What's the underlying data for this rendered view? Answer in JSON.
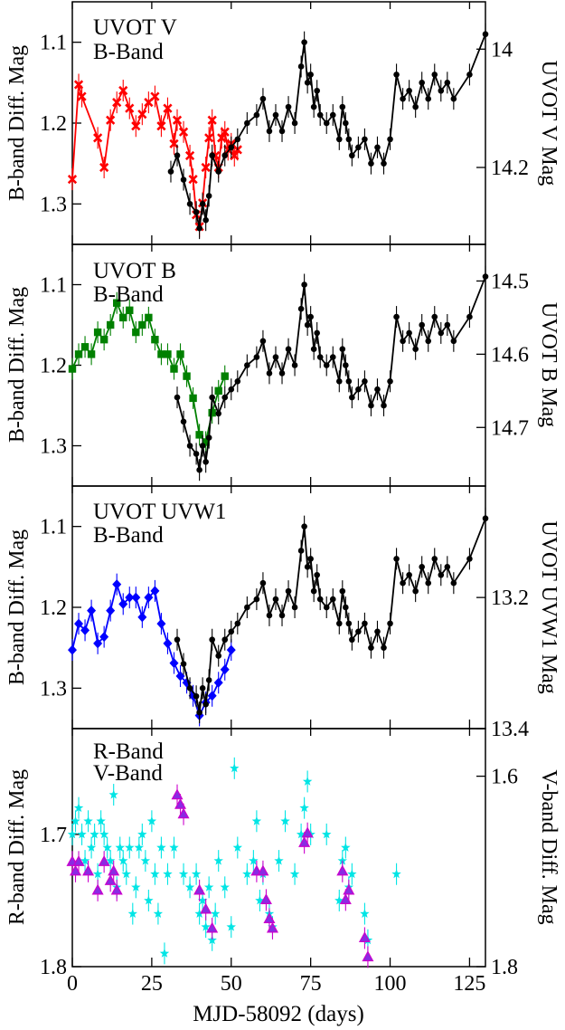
{
  "figure": {
    "xlabel": "MJD-58092 (days)",
    "x_ticks": [
      0,
      25,
      50,
      75,
      100,
      125
    ],
    "xlim": [
      0,
      130
    ]
  },
  "chart_data": [
    {
      "type": "scatter",
      "ylabel_left": "B-band Diff. Mag",
      "ylabel_right": "UVOT V Mag",
      "ylim_left": [
        1.35,
        1.05
      ],
      "ylim_right": [
        14.33,
        13.92
      ],
      "yticks_left": [
        1.1,
        1.2,
        1.3
      ],
      "yticks_right": [
        14,
        14.2
      ],
      "yticks_right_labels": [
        "14",
        "14.2"
      ],
      "series": [
        {
          "name": "UVOT V",
          "color": "#ff0000",
          "marker": "x",
          "axis": "right",
          "x": [
            0,
            2,
            3,
            8,
            10,
            12,
            14,
            16,
            18,
            20,
            22,
            24,
            26,
            28,
            30,
            32,
            33,
            35,
            37,
            38,
            39,
            40,
            41,
            42,
            43,
            44,
            45,
            46,
            47,
            48,
            49,
            50,
            51,
            52
          ],
          "y": [
            14.22,
            14.06,
            14.08,
            14.15,
            14.2,
            14.12,
            14.09,
            14.07,
            14.1,
            14.13,
            14.11,
            14.09,
            14.08,
            14.13,
            14.1,
            14.16,
            14.12,
            14.14,
            14.18,
            14.22,
            14.28,
            14.3,
            14.26,
            14.2,
            14.15,
            14.12,
            14.18,
            14.2,
            14.15,
            14.14,
            14.17,
            14.16,
            14.18,
            14.17
          ]
        },
        {
          "name": "B-Band",
          "color": "#000000",
          "marker": "circle",
          "axis": "left",
          "x": [
            31,
            33,
            35,
            37,
            39,
            40,
            41,
            42,
            43,
            44,
            46,
            48,
            50,
            52,
            55,
            58,
            60,
            62,
            64,
            66,
            68,
            70,
            72,
            73,
            74,
            75,
            76,
            77,
            78,
            80,
            82,
            84,
            85,
            86,
            87,
            88,
            90,
            92,
            94,
            96,
            98,
            100,
            102,
            104,
            106,
            108,
            110,
            112,
            114,
            116,
            118,
            120,
            125,
            130
          ],
          "y": [
            1.26,
            1.24,
            1.27,
            1.3,
            1.31,
            1.33,
            1.3,
            1.32,
            1.29,
            1.24,
            1.26,
            1.24,
            1.23,
            1.22,
            1.2,
            1.19,
            1.17,
            1.21,
            1.19,
            1.21,
            1.18,
            1.2,
            1.13,
            1.1,
            1.15,
            1.14,
            1.18,
            1.16,
            1.19,
            1.2,
            1.19,
            1.22,
            1.18,
            1.2,
            1.22,
            1.24,
            1.23,
            1.22,
            1.25,
            1.23,
            1.25,
            1.22,
            1.14,
            1.17,
            1.16,
            1.18,
            1.15,
            1.17,
            1.14,
            1.16,
            1.15,
            1.17,
            1.14,
            1.09
          ]
        }
      ]
    },
    {
      "type": "scatter",
      "ylabel_left": "B-band Diff. Mag",
      "ylabel_right": "UVOT B Mag",
      "ylim_left": [
        1.35,
        1.05
      ],
      "ylim_right": [
        14.78,
        14.45
      ],
      "yticks_left": [
        1.1,
        1.2,
        1.3
      ],
      "yticks_right": [
        14.5,
        14.6,
        14.7
      ],
      "yticks_right_labels": [
        "14.5",
        "14.6",
        "14.7"
      ],
      "series": [
        {
          "name": "UVOT B",
          "color": "#008000",
          "marker": "square",
          "axis": "right",
          "x": [
            0,
            2,
            4,
            6,
            8,
            10,
            12,
            14,
            16,
            18,
            20,
            22,
            24,
            26,
            28,
            30,
            32,
            34,
            36,
            38,
            40,
            42,
            44,
            46,
            48
          ],
          "y": [
            14.62,
            14.6,
            14.59,
            14.6,
            14.57,
            14.58,
            14.56,
            14.53,
            14.55,
            14.54,
            14.57,
            14.56,
            14.55,
            14.58,
            14.6,
            14.6,
            14.62,
            14.6,
            14.63,
            14.66,
            14.71,
            14.72,
            14.68,
            14.65,
            14.63
          ]
        },
        {
          "name": "B-Band",
          "color": "#000000",
          "marker": "circle",
          "axis": "left",
          "x": [
            33,
            35,
            37,
            39,
            40,
            41,
            42,
            43,
            44,
            46,
            48,
            50,
            52,
            55,
            58,
            60,
            62,
            64,
            66,
            68,
            70,
            72,
            73,
            74,
            75,
            76,
            77,
            78,
            80,
            82,
            84,
            85,
            86,
            87,
            88,
            90,
            92,
            94,
            96,
            98,
            100,
            102,
            104,
            106,
            108,
            110,
            112,
            114,
            116,
            118,
            120,
            125,
            130
          ],
          "y": [
            1.24,
            1.27,
            1.3,
            1.31,
            1.33,
            1.3,
            1.32,
            1.29,
            1.24,
            1.26,
            1.24,
            1.23,
            1.22,
            1.2,
            1.19,
            1.17,
            1.21,
            1.19,
            1.21,
            1.18,
            1.2,
            1.13,
            1.1,
            1.15,
            1.14,
            1.18,
            1.16,
            1.19,
            1.2,
            1.19,
            1.22,
            1.18,
            1.2,
            1.22,
            1.24,
            1.23,
            1.22,
            1.25,
            1.23,
            1.25,
            1.22,
            1.14,
            1.17,
            1.16,
            1.18,
            1.15,
            1.17,
            1.14,
            1.16,
            1.15,
            1.17,
            1.14,
            1.09
          ]
        }
      ]
    },
    {
      "type": "scatter",
      "ylabel_left": "B-band Diff. Mag",
      "ylabel_right": "UVOT UVW1 Mag",
      "ylim_left": [
        1.35,
        1.05
      ],
      "ylim_right": [
        13.4,
        13.03
      ],
      "yticks_left": [
        1.1,
        1.2,
        1.3
      ],
      "yticks_right": [
        13.2,
        13.4
      ],
      "yticks_right_labels": [
        "13.2",
        "13.4"
      ],
      "series": [
        {
          "name": "UVOT UVW1",
          "color": "#0000ff",
          "marker": "diamond",
          "axis": "right",
          "x": [
            0,
            2,
            4,
            6,
            8,
            10,
            12,
            14,
            16,
            18,
            20,
            22,
            24,
            26,
            28,
            30,
            32,
            34,
            36,
            38,
            40,
            42,
            44,
            46,
            48,
            50
          ],
          "y": [
            13.28,
            13.24,
            13.25,
            13.22,
            13.27,
            13.26,
            13.22,
            13.18,
            13.21,
            13.2,
            13.2,
            13.23,
            13.2,
            13.19,
            13.24,
            13.27,
            13.3,
            13.32,
            13.33,
            13.35,
            13.38,
            13.36,
            13.35,
            13.33,
            13.31,
            13.28
          ]
        },
        {
          "name": "B-Band",
          "color": "#000000",
          "marker": "circle",
          "axis": "left",
          "x": [
            33,
            35,
            37,
            39,
            40,
            41,
            42,
            43,
            44,
            46,
            48,
            50,
            52,
            55,
            58,
            60,
            62,
            64,
            66,
            68,
            70,
            72,
            73,
            74,
            75,
            76,
            77,
            78,
            80,
            82,
            84,
            85,
            86,
            87,
            88,
            90,
            92,
            94,
            96,
            98,
            100,
            102,
            104,
            106,
            108,
            110,
            112,
            114,
            116,
            118,
            120,
            125,
            130
          ],
          "y": [
            1.24,
            1.27,
            1.3,
            1.31,
            1.33,
            1.3,
            1.32,
            1.29,
            1.24,
            1.26,
            1.24,
            1.23,
            1.22,
            1.2,
            1.19,
            1.17,
            1.21,
            1.19,
            1.21,
            1.18,
            1.2,
            1.13,
            1.1,
            1.15,
            1.14,
            1.18,
            1.16,
            1.19,
            1.2,
            1.19,
            1.22,
            1.18,
            1.2,
            1.22,
            1.24,
            1.23,
            1.22,
            1.25,
            1.23,
            1.25,
            1.22,
            1.14,
            1.17,
            1.16,
            1.18,
            1.15,
            1.17,
            1.14,
            1.16,
            1.15,
            1.17,
            1.14,
            1.09
          ]
        }
      ]
    },
    {
      "type": "scatter",
      "ylabel_left": "R-band Diff. Mag",
      "ylabel_right": "V-band Diff. Mag",
      "ylim_left": [
        1.8,
        1.62
      ],
      "ylim_right": [
        1.8,
        1.55
      ],
      "yticks_left": [
        1.7,
        1.8
      ],
      "yticks_right": [
        1.6,
        1.8
      ],
      "yticks_right_labels": [
        "1.6",
        "1.8"
      ],
      "series": [
        {
          "name": "R-Band",
          "color": "#00e5e5",
          "marker": "star",
          "axis": "left",
          "x": [
            0,
            1,
            2,
            3,
            4,
            5,
            6,
            7,
            8,
            9,
            10,
            11,
            12,
            13,
            14,
            15,
            16,
            17,
            18,
            19,
            20,
            21,
            22,
            23,
            24,
            25,
            26,
            27,
            28,
            29,
            30,
            32,
            35,
            37,
            39,
            40,
            41,
            42,
            43,
            44,
            45,
            46,
            48,
            50,
            51,
            52,
            55,
            57,
            58,
            59,
            60,
            62,
            63,
            65,
            67,
            70,
            72,
            73,
            74,
            75,
            80,
            84,
            85,
            86,
            87,
            88,
            92,
            93,
            102
          ],
          "y": [
            1.7,
            1.69,
            1.68,
            1.7,
            1.72,
            1.69,
            1.71,
            1.7,
            1.73,
            1.69,
            1.7,
            1.71,
            1.72,
            1.67,
            1.74,
            1.71,
            1.72,
            1.73,
            1.71,
            1.76,
            1.74,
            1.71,
            1.7,
            1.72,
            1.75,
            1.69,
            1.73,
            1.76,
            1.71,
            1.79,
            1.73,
            1.71,
            1.73,
            1.74,
            1.73,
            1.76,
            1.75,
            1.77,
            1.74,
            1.78,
            1.76,
            1.72,
            1.74,
            1.77,
            1.65,
            1.71,
            1.73,
            1.72,
            1.69,
            1.75,
            1.73,
            1.76,
            1.77,
            1.72,
            1.69,
            1.73,
            1.7,
            1.68,
            1.66,
            1.7,
            1.7,
            1.75,
            1.72,
            1.71,
            1.74,
            1.73,
            1.76,
            1.78,
            1.73
          ]
        },
        {
          "name": "V-Band",
          "color": "#cc00cc",
          "marker": "triangle",
          "fill": "#8a2be2",
          "axis": "right",
          "x": [
            0,
            1,
            2,
            5,
            8,
            10,
            12,
            13,
            14,
            33,
            34,
            35,
            40,
            42,
            44,
            58,
            60,
            61,
            62,
            63,
            73,
            74,
            85,
            86,
            87,
            92,
            93
          ],
          "y": [
            1.69,
            1.7,
            1.69,
            1.7,
            1.72,
            1.69,
            1.71,
            1.7,
            1.72,
            1.62,
            1.63,
            1.64,
            1.72,
            1.74,
            1.76,
            1.7,
            1.7,
            1.73,
            1.75,
            1.76,
            1.67,
            1.66,
            1.7,
            1.73,
            1.72,
            1.77,
            1.79
          ]
        }
      ]
    }
  ]
}
